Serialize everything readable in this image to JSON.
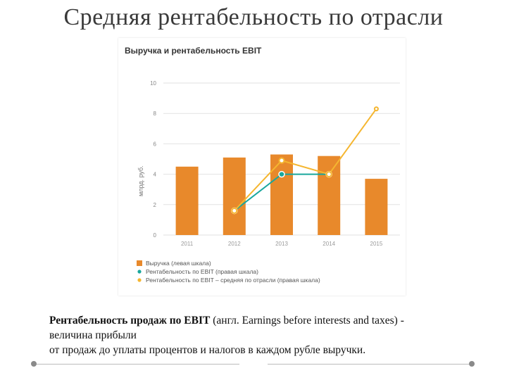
{
  "slide": {
    "title": "Средняя рентабельность по отрасли",
    "caption": {
      "term": "Рентабельность продаж по EBIT",
      "line1_rest": " (англ. Earnings before interests and taxes) -",
      "line2": "величина прибыли",
      "line3": "от продаж до уплаты процентов и налогов в каждом рубле выручки."
    }
  },
  "chart_data": {
    "type": "bar",
    "title": "Выручка и рентабельность EBIT",
    "ylabel": "млрд. руб.",
    "ylim": [
      0,
      10
    ],
    "yticks": [
      "0",
      "2",
      "4",
      "6",
      "8",
      "10"
    ],
    "categories": [
      "2011",
      "2012",
      "2013",
      "2014",
      "2015"
    ],
    "grid": true,
    "legend_position": "bottom",
    "series": [
      {
        "name": "Выручка (левая шкала)",
        "kind": "bar",
        "color": "#e8892b",
        "values": [
          4.5,
          5.1,
          5.3,
          5.2,
          3.7
        ]
      },
      {
        "name": "Рентабельность по EBIT (правая шкала)",
        "kind": "line",
        "color": "#1aa79d",
        "values": [
          null,
          1.6,
          4.0,
          4.0,
          null
        ]
      },
      {
        "name": "Рентабельность по EBIT – средняя по отрасли (правая шкала)",
        "kind": "line",
        "color": "#f5b630",
        "values": [
          null,
          1.6,
          4.9,
          4.0,
          8.3
        ]
      }
    ]
  }
}
